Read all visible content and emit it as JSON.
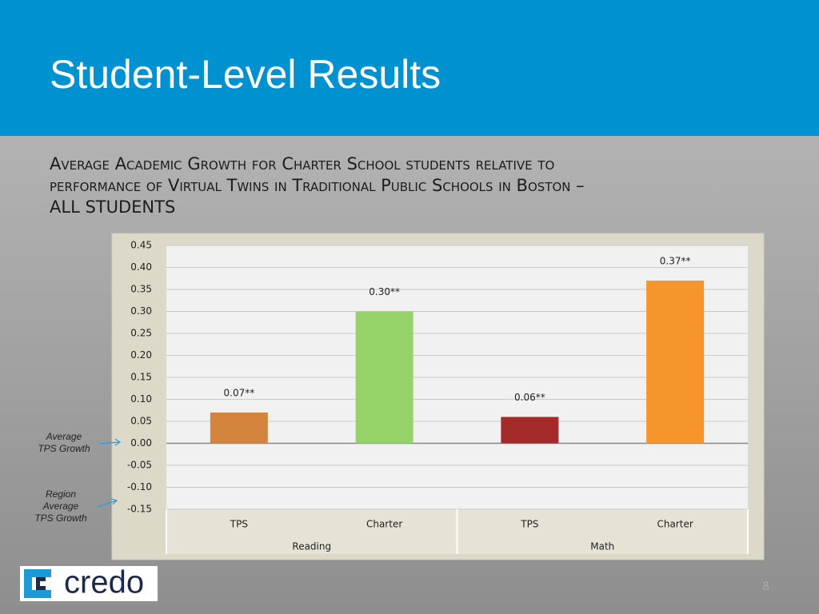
{
  "header": {
    "title": "Student-Level Results"
  },
  "subtitle": [
    "Average Academic Growth for Charter School students relative to",
    "performance of Virtual Twins in Traditional Public Schools in Boston –",
    "ALL STUDENTS"
  ],
  "chart_data": {
    "type": "bar",
    "categories": [
      "TPS",
      "Charter",
      "TPS",
      "Charter"
    ],
    "groups": [
      "Reading",
      "Math"
    ],
    "values": [
      0.07,
      0.3,
      0.06,
      0.37
    ],
    "value_labels": [
      "0.07**",
      "0.30**",
      "0.06**",
      "0.37**"
    ],
    "colors": [
      "#d4843d",
      "#95d26a",
      "#a42a2a",
      "#f7952d"
    ],
    "ylim": [
      -0.15,
      0.45
    ],
    "yticks": [
      0.45,
      {
        "value": 0.4,
        "label": "0.40"
      },
      0.35,
      {
        "value": 0.3,
        "label": "0.30"
      },
      0.25,
      {
        "value": 0.2,
        "label": "0.20"
      },
      0.15,
      {
        "value": 0.1,
        "label": "0.10"
      },
      0.05,
      {
        "value": 0,
        "label": "0.00"
      },
      -0.05,
      {
        "value": -0.1,
        "label": "-0.10"
      },
      -0.15
    ],
    "grid": true
  },
  "annotations": [
    [
      "Average",
      "TPS Growth"
    ],
    [
      "Region",
      "Average",
      "TPS Growth"
    ]
  ],
  "logo": "credo",
  "page_number": "8"
}
